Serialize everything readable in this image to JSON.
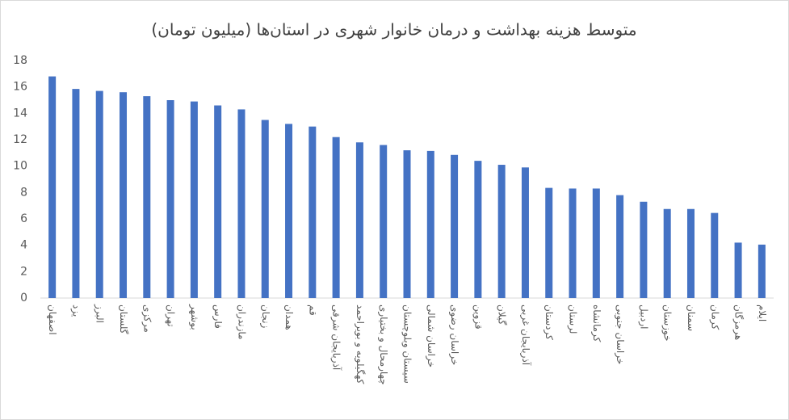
{
  "chart_data": {
    "type": "bar",
    "title": "متوسط هزینه بهداشت و درمان خانوار شهری در استان‌ها (میلیون تومان)",
    "categories": [
      "اصفهان",
      "یزد",
      "البرز",
      "گلستان",
      "مرکزی",
      "تهران",
      "بوشهر",
      "فارس",
      "مازندران",
      "زنجان",
      "همدان",
      "قم",
      "آذربایجان شرقی",
      "کهگیلویه و بویراحمد",
      "چهارمحال و بختیاری",
      "سیستان وبلوچستان",
      "خراسان شمالی",
      "خراسان رضوی",
      "قزوین",
      "گیلان",
      "آذربایجان غربی",
      "کردستان",
      "لرستان",
      "کرمانشاه",
      "خراسان جنوبی",
      "اردبیل",
      "خوزستان",
      "سمنان",
      "کرمان",
      "هرمزگان",
      "ایلام"
    ],
    "values": [
      16.8,
      15.85,
      15.7,
      15.6,
      15.3,
      15.0,
      14.9,
      14.6,
      14.3,
      13.5,
      13.2,
      13.0,
      12.2,
      11.8,
      11.6,
      11.2,
      11.15,
      10.85,
      10.4,
      10.1,
      9.9,
      8.35,
      8.3,
      8.3,
      7.8,
      7.3,
      6.75,
      6.75,
      6.45,
      4.2,
      4.05
    ],
    "color": "#4472c4",
    "ylim": [
      0,
      18
    ],
    "yticks": [
      0,
      2,
      4,
      6,
      8,
      10,
      12,
      14,
      16,
      18
    ],
    "grid": false
  }
}
